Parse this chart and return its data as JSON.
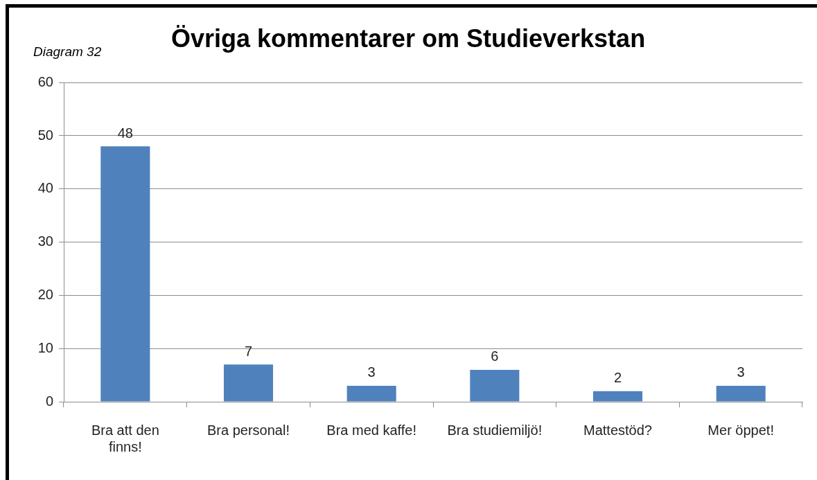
{
  "chart_data": {
    "type": "bar",
    "title": "Övriga kommentarer om Studieverkstan",
    "annotations": [
      "Diagram 32"
    ],
    "categories": [
      "Bra att den finns!",
      "Bra personal!",
      "Bra med kaffe!",
      "Bra studiemiljö!",
      "Mattestöd?",
      "Mer öppet!"
    ],
    "values": [
      48,
      7,
      3,
      6,
      2,
      3
    ],
    "color": "#4f81bd",
    "ylim": [
      0,
      60
    ],
    "yticks": [
      0,
      10,
      20,
      30,
      40,
      50,
      60
    ],
    "grid": "y",
    "data_labels": true
  }
}
